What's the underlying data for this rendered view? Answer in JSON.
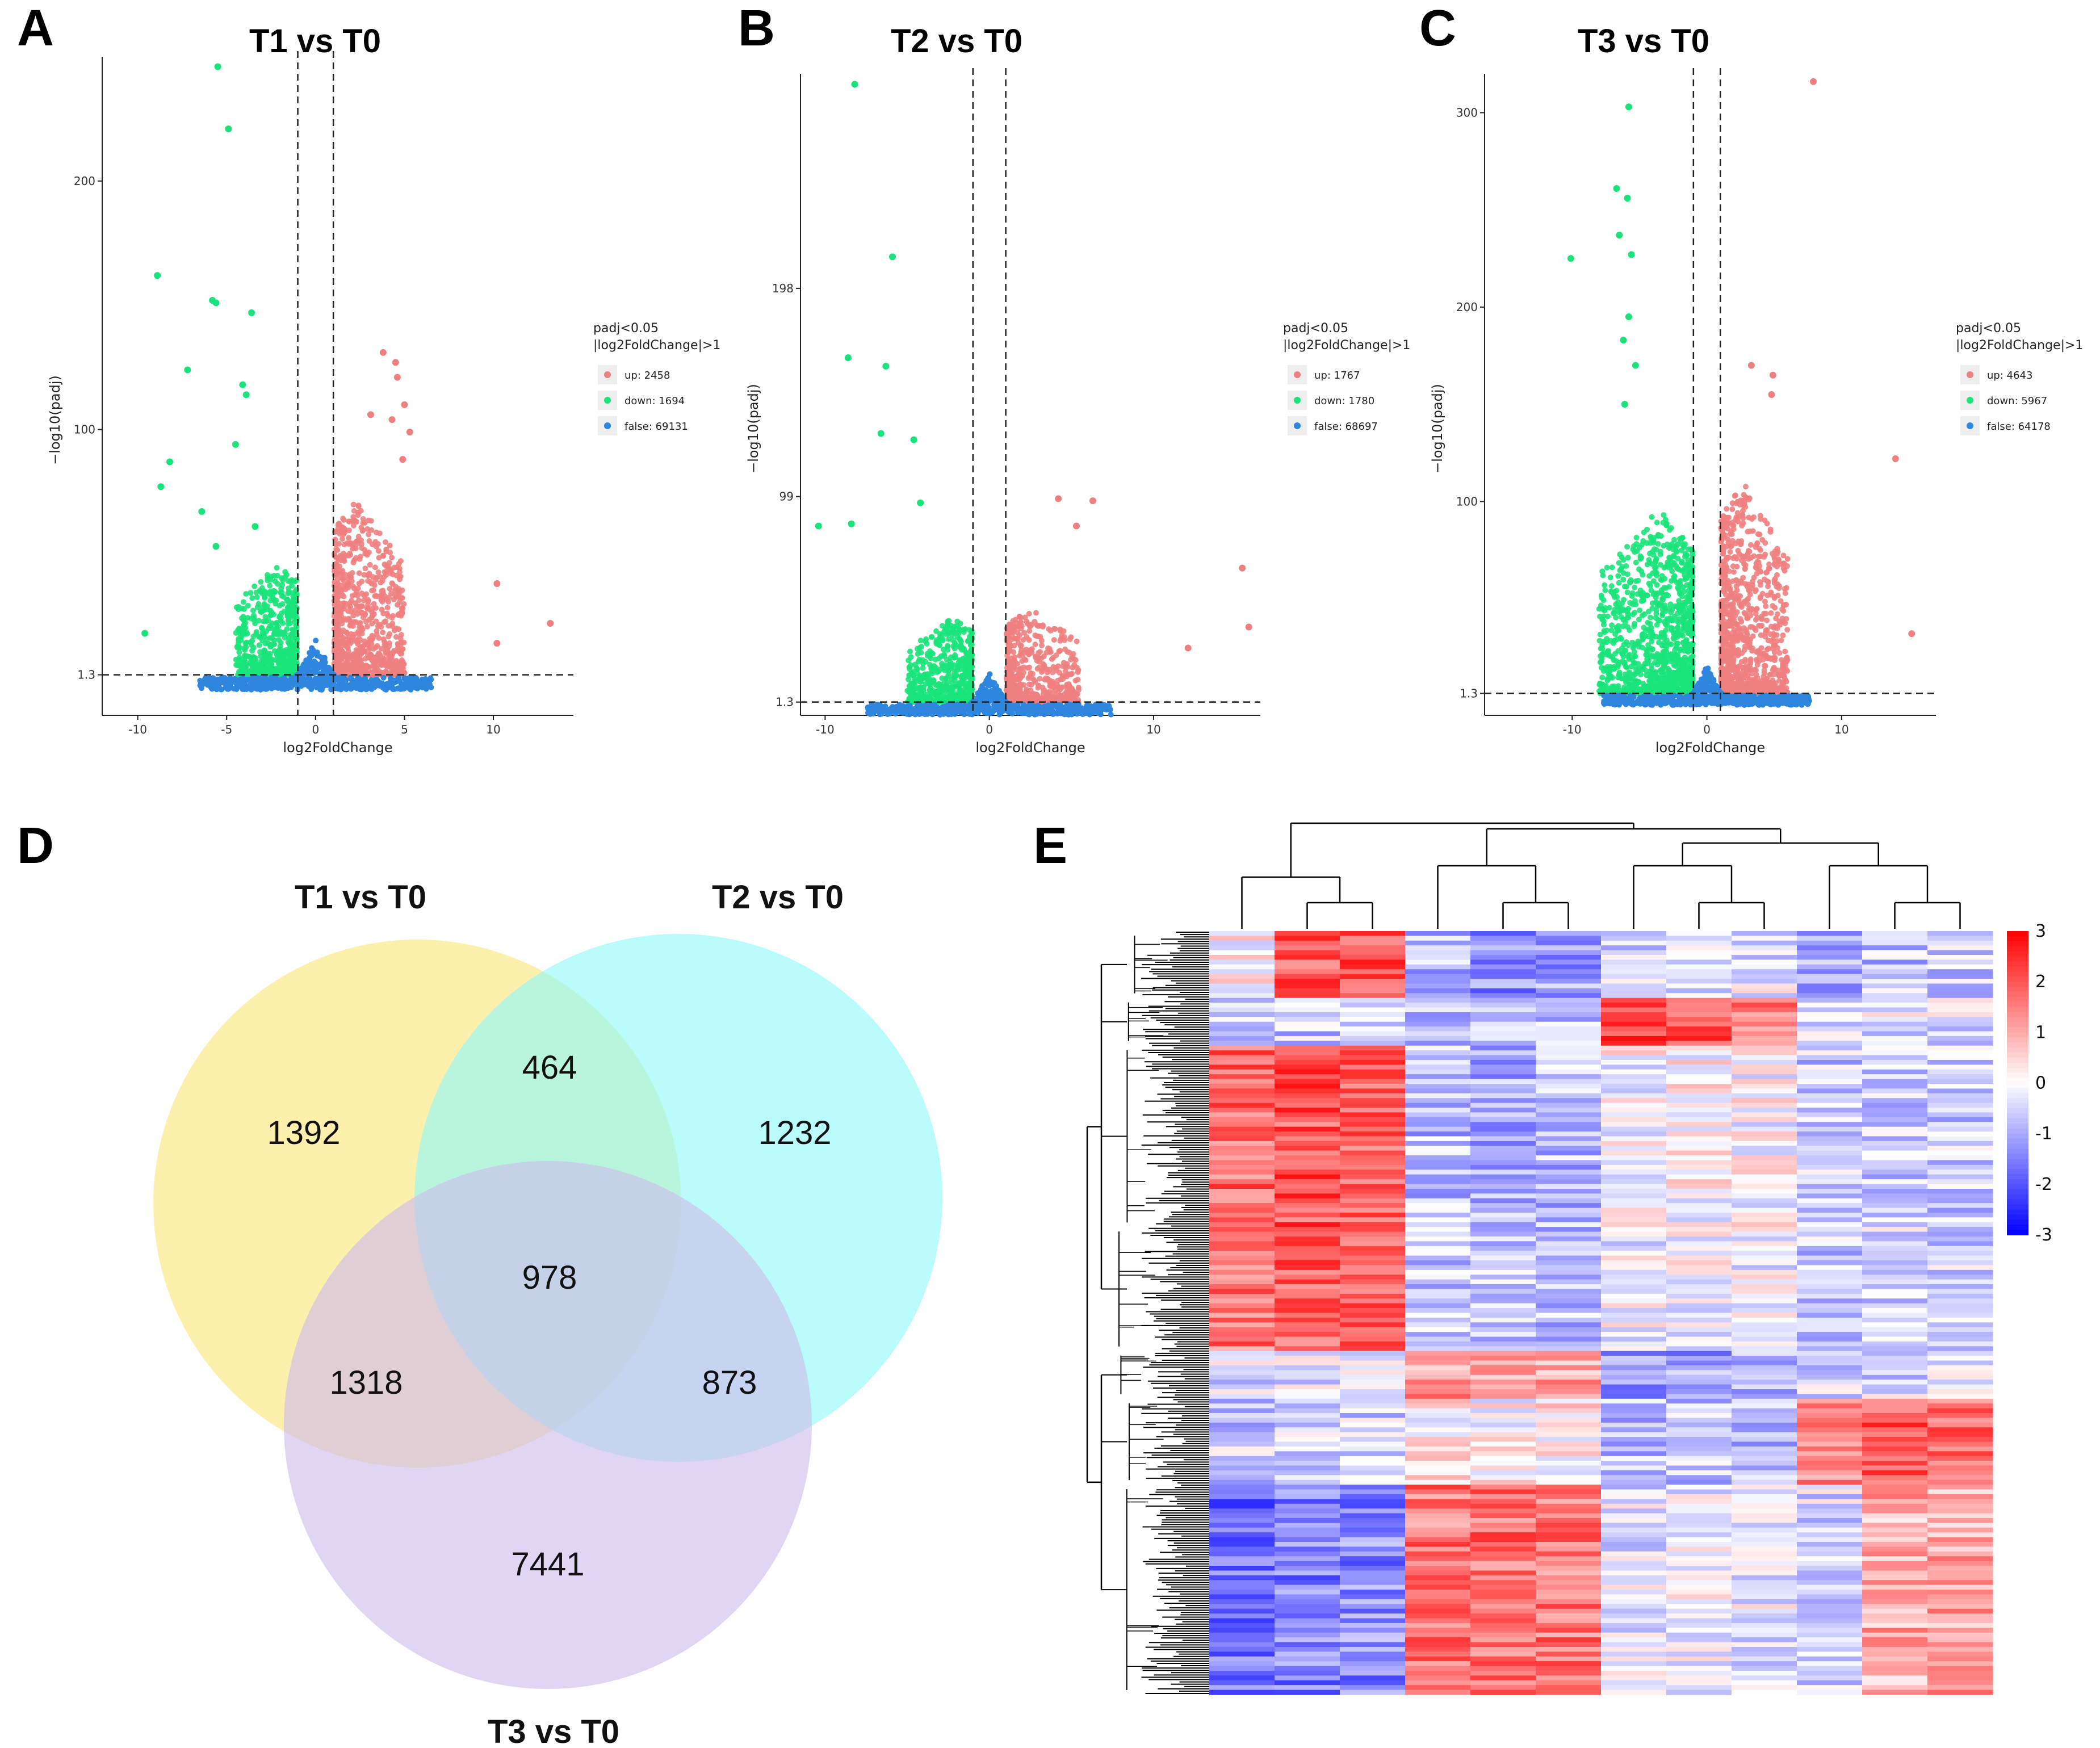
{
  "figure": {
    "panel_letters": [
      "A",
      "B",
      "C",
      "D",
      "E"
    ]
  },
  "colors": {
    "up": "#f08080",
    "down": "#19e37a",
    "false": "#2e86de",
    "venn_t1": "#fbe67a",
    "venn_t2": "#8ff8f8",
    "venn_t3": "#cdbcec",
    "heat_high": "#ff0000",
    "heat_mid": "#ffffff",
    "heat_low": "#0000ff"
  },
  "chart_data": [
    {
      "type": "scatter",
      "panel": "A",
      "title": "T1 vs T0",
      "xlabel": "log2FoldChange",
      "ylabel": "−log10(padj)",
      "xlim": [
        -12,
        14.5
      ],
      "ylim": [
        -15,
        250
      ],
      "xticks": [
        -10,
        -5,
        0,
        5,
        10
      ],
      "xtick_labels": [
        "-10",
        "-5",
        "0",
        "5",
        "10"
      ],
      "yticks": [
        1.3,
        100,
        200
      ],
      "ytick_labels": [
        "1.3",
        "100",
        "200"
      ],
      "threshold_x": [
        -1,
        1
      ],
      "threshold_y": 1.3,
      "legend_title": [
        "padj<0.05",
        "|log2FoldChange|>1"
      ],
      "legend": [
        {
          "key": "up",
          "label": "up: 2458",
          "count": 2458
        },
        {
          "key": "down",
          "label": "down: 1694",
          "count": 1694
        },
        {
          "key": "false",
          "label": "false: 69131",
          "count": 69131
        }
      ],
      "series": [
        {
          "name": "down",
          "x": [
            -5.5,
            -4.9,
            -8.9,
            -5.8,
            -5.6,
            -3.6,
            -7.2,
            -4.1,
            -3.9,
            -8.2,
            -8.7,
            -4.5,
            -6.4,
            -3.4,
            -5.6,
            -9.6
          ],
          "y": [
            246,
            221,
            162,
            152,
            151,
            147,
            124,
            118,
            114,
            87,
            77,
            94,
            67,
            61,
            53,
            18
          ]
        },
        {
          "name": "up",
          "x": [
            3.8,
            4.5,
            4.6,
            5.0,
            3.1,
            4.3,
            5.3,
            4.9,
            10.2,
            13.2,
            10.2
          ],
          "y": [
            131,
            127,
            121,
            110,
            106,
            104,
            99,
            88,
            38,
            22,
            14
          ]
        }
      ],
      "clouds": [
        {
          "name": "down",
          "count": 650,
          "x_range": [
            -4.5,
            -1.05
          ],
          "y_max": 45
        },
        {
          "name": "up",
          "count": 900,
          "x_range": [
            1.05,
            5
          ],
          "y_max": 70
        }
      ]
    },
    {
      "type": "scatter",
      "panel": "B",
      "title": "T2 vs T0",
      "xlabel": "log2FoldChange",
      "ylabel": "−log10(padj)",
      "xlim": [
        -11.5,
        16.5
      ],
      "ylim": [
        -5,
        300
      ],
      "xticks": [
        -10,
        0,
        10
      ],
      "xtick_labels": [
        "-10",
        "0",
        "10"
      ],
      "yticks": [
        1.3,
        99,
        198
      ],
      "ytick_labels": [
        "1.3",
        "99",
        "198"
      ],
      "threshold_x": [
        -1,
        1
      ],
      "threshold_y": 1.3,
      "legend_title": [
        "padj<0.05",
        "|log2FoldChange|>1"
      ],
      "legend": [
        {
          "key": "up",
          "label": "up: 1767",
          "count": 1767
        },
        {
          "key": "down",
          "label": "down: 1780",
          "count": 1780
        },
        {
          "key": "false",
          "label": "false: 68697",
          "count": 68697
        }
      ],
      "series": [
        {
          "name": "down",
          "x": [
            -8.2,
            -5.9,
            -8.6,
            -6.3,
            -6.6,
            -4.6,
            -10.4,
            -8.4,
            -4.2
          ],
          "y": [
            295,
            213,
            165,
            161,
            129,
            126,
            85,
            86,
            96
          ]
        },
        {
          "name": "up",
          "x": [
            4.2,
            6.3,
            5.3,
            15.4,
            15.8,
            12.1
          ],
          "y": [
            98,
            97,
            85,
            65,
            37,
            27
          ]
        }
      ],
      "clouds": [
        {
          "name": "down",
          "count": 600,
          "x_range": [
            -5,
            -1.05
          ],
          "y_max": 40
        },
        {
          "name": "up",
          "count": 550,
          "x_range": [
            1.05,
            5.5
          ],
          "y_max": 45
        }
      ]
    },
    {
      "type": "scatter",
      "panel": "C",
      "title": "T3 vs T0",
      "xlabel": "log2FoldChange",
      "ylabel": "−log10(padj)",
      "xlim": [
        -16.5,
        17
      ],
      "ylim": [
        -10,
        320
      ],
      "xticks": [
        -10,
        0,
        10
      ],
      "xtick_labels": [
        "-10",
        "0",
        "10"
      ],
      "yticks": [
        1.3,
        100,
        200,
        300
      ],
      "ytick_labels": [
        "1.3",
        "100",
        "200",
        "300"
      ],
      "threshold_x": [
        -1,
        1
      ],
      "threshold_y": 1.3,
      "legend_title": [
        "padj<0.05",
        "|log2FoldChange|>1"
      ],
      "legend": [
        {
          "key": "up",
          "label": "up: 4643",
          "count": 4643
        },
        {
          "key": "down",
          "label": "down: 5967",
          "count": 5967
        },
        {
          "key": "false",
          "label": "false: 64178",
          "count": 64178
        }
      ],
      "series": [
        {
          "name": "down",
          "x": [
            -5.8,
            -6.7,
            -5.9,
            -6.5,
            -10.1,
            -5.6,
            -5.8,
            -6.2,
            -5.3,
            -6.1
          ],
          "y": [
            303,
            261,
            256,
            237,
            225,
            227,
            195,
            183,
            170,
            150
          ]
        },
        {
          "name": "up",
          "x": [
            7.9,
            14,
            15.2,
            4.9,
            3.3,
            4.8
          ],
          "y": [
            316,
            122,
            32,
            165,
            170,
            155
          ]
        }
      ],
      "clouds": [
        {
          "name": "down",
          "count": 1200,
          "x_range": [
            -8,
            -1.05
          ],
          "y_max": 95
        },
        {
          "name": "up",
          "count": 1000,
          "x_range": [
            1.05,
            6
          ],
          "y_max": 110
        }
      ]
    },
    {
      "type": "venn",
      "panel": "D",
      "sets": [
        "T1 vs T0",
        "T2 vs T0",
        "T3 vs T0"
      ],
      "regions": [
        {
          "sets": [
            "T1 vs T0"
          ],
          "label": "1392",
          "value": 1392
        },
        {
          "sets": [
            "T2 vs T0"
          ],
          "label": "1232",
          "value": 1232
        },
        {
          "sets": [
            "T3 vs T0"
          ],
          "label": "7441",
          "value": 7441
        },
        {
          "sets": [
            "T1 vs T0",
            "T2 vs T0"
          ],
          "label": "464",
          "value": 464
        },
        {
          "sets": [
            "T1 vs T0",
            "T3 vs T0"
          ],
          "label": "1318",
          "value": 1318
        },
        {
          "sets": [
            "T2 vs T0",
            "T3 vs T0"
          ],
          "label": "873",
          "value": 873
        },
        {
          "sets": [
            "T1 vs T0",
            "T2 vs T0",
            "T3 vs T0"
          ],
          "label": "978",
          "value": 978
        }
      ]
    },
    {
      "type": "heatmap",
      "panel": "E",
      "n_columns": 12,
      "column_clusters": [
        {
          "name": "group1",
          "columns": [
            0,
            1,
            2
          ]
        },
        {
          "name": "group2",
          "columns": [
            3,
            4,
            5
          ]
        },
        {
          "name": "group3",
          "columns": [
            6,
            7,
            8
          ]
        },
        {
          "name": "group4",
          "columns": [
            9,
            10,
            11
          ]
        }
      ],
      "row_blocks": [
        {
          "rows": 14,
          "values": [
            0.1,
            2.0,
            2.1,
            -0.9,
            -1.3,
            -1.1,
            -0.4,
            -0.3,
            -0.2,
            -0.9,
            -0.7,
            -0.6
          ]
        },
        {
          "rows": 10,
          "values": [
            -0.5,
            -0.6,
            -0.6,
            -0.7,
            -0.8,
            -0.7,
            2.2,
            1.9,
            1.6,
            -0.4,
            -0.3,
            -0.3
          ]
        },
        {
          "rows": 38,
          "values": [
            1.7,
            2.0,
            1.9,
            -0.8,
            -0.9,
            -0.8,
            0.0,
            0.1,
            0.0,
            -0.6,
            -0.5,
            -0.6
          ]
        },
        {
          "rows": 26,
          "values": [
            1.6,
            1.9,
            2.0,
            -0.7,
            -0.6,
            -0.7,
            -0.2,
            -0.1,
            -0.2,
            -0.6,
            -0.5,
            -0.5
          ]
        },
        {
          "rows": 10,
          "values": [
            -0.4,
            -0.3,
            -0.3,
            1.2,
            1.0,
            1.1,
            -1.3,
            -1.1,
            -1.0,
            -0.5,
            -0.4,
            -0.3
          ]
        },
        {
          "rows": 18,
          "values": [
            -0.6,
            -0.5,
            -0.5,
            0.2,
            0.1,
            0.2,
            -0.8,
            -0.7,
            -0.8,
            1.5,
            1.9,
            1.7
          ]
        },
        {
          "rows": 44,
          "values": [
            -1.7,
            -1.5,
            -1.4,
            1.6,
            1.7,
            1.6,
            -0.3,
            -0.2,
            -0.2,
            -0.4,
            1.0,
            1.1
          ]
        }
      ],
      "colorbar": {
        "ticks": [
          3,
          2,
          1,
          0,
          -1,
          -2,
          -3
        ],
        "tick_labels": [
          "3",
          "2",
          "1",
          "0",
          "-1",
          "-2",
          "-3"
        ]
      }
    }
  ]
}
